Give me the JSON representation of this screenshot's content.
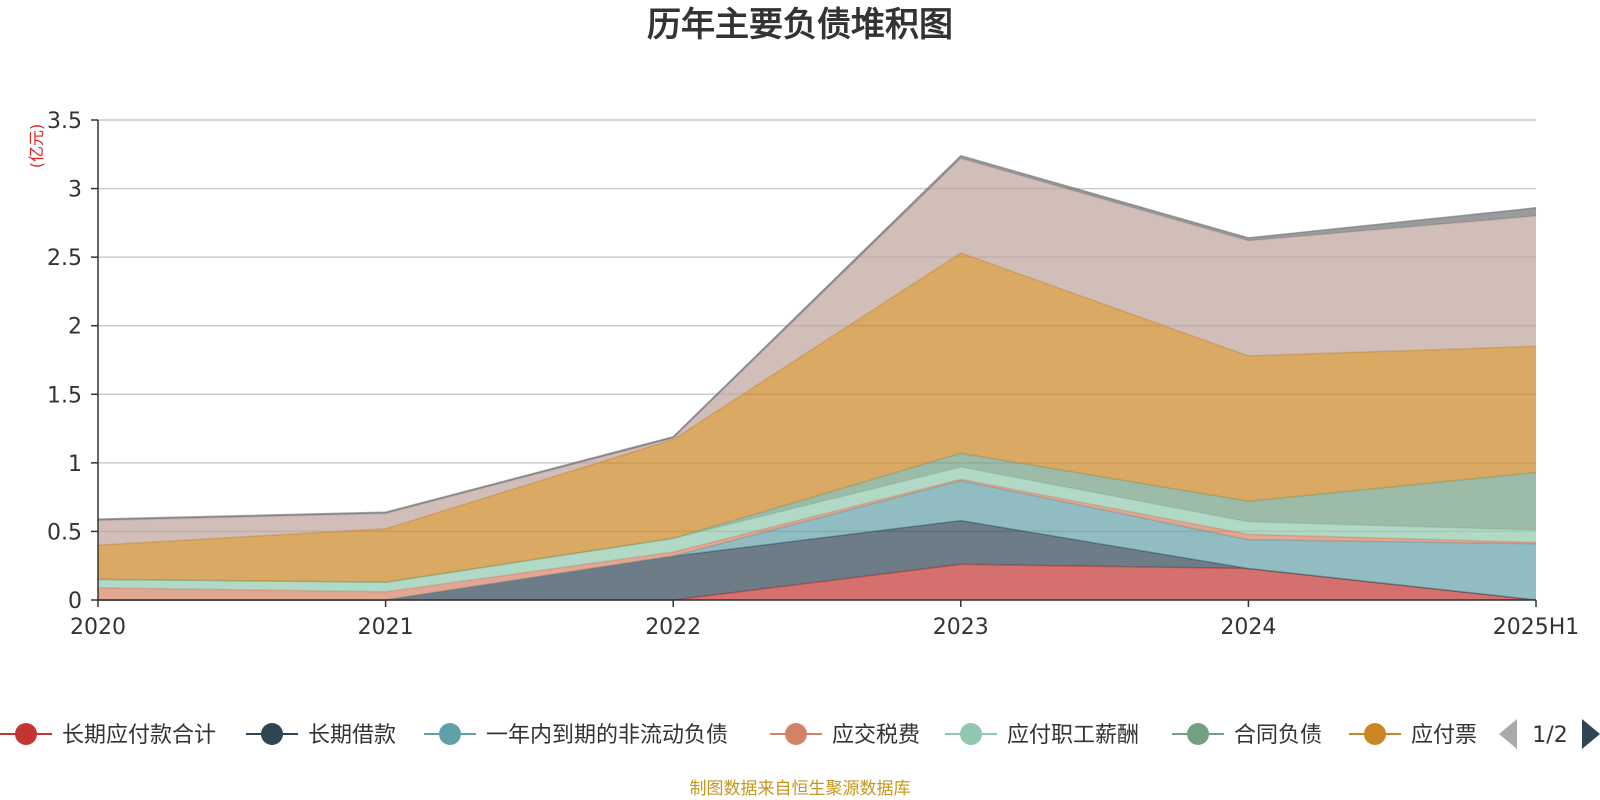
{
  "chart_data": {
    "type": "area",
    "stacked": true,
    "title": "历年主要负债堆积图",
    "ylabel": "(亿元)",
    "ylim": [
      0,
      3.5
    ],
    "yticks": [
      0,
      0.5,
      1,
      1.5,
      2,
      2.5,
      3,
      3.5
    ],
    "ytick_labels": [
      "0",
      "0.5",
      "1",
      "1.5",
      "2",
      "2.5",
      "3",
      "3.5"
    ],
    "categories": [
      "2020",
      "2021",
      "2022",
      "2023",
      "2024",
      "2025H1"
    ],
    "grid": true,
    "legend_position": "bottom",
    "legend_page": "1/2",
    "series": [
      {
        "name": "长期应付款合计",
        "color": "#c23531",
        "values": [
          0,
          0,
          0,
          0.26,
          0.23,
          0
        ]
      },
      {
        "name": "长期借款",
        "color": "#2f4554",
        "values": [
          0,
          0,
          0.32,
          0.32,
          0,
          0
        ]
      },
      {
        "name": "一年内到期的非流动负债",
        "color": "#61a0a8",
        "values": [
          0,
          0,
          0,
          0.29,
          0.21,
          0.41
        ]
      },
      {
        "name": "应交税费",
        "color": "#d48265",
        "values": [
          0.09,
          0.06,
          0.03,
          0.01,
          0.04,
          0.01
        ]
      },
      {
        "name": "应付职工薪酬",
        "color": "#91c7ae",
        "values": [
          0.06,
          0.07,
          0.1,
          0.09,
          0.09,
          0.09
        ]
      },
      {
        "name": "合同负债",
        "color": "#749f83",
        "values": [
          0,
          0,
          0,
          0.1,
          0.15,
          0.42
        ]
      },
      {
        "name": "应付票",
        "color": "#ca8622",
        "values": [
          0.25,
          0.39,
          0.72,
          1.46,
          1.06,
          0.92
        ]
      },
      {
        "name": "",
        "color": "#bda29a",
        "values": [
          0.18,
          0.11,
          0.01,
          0.69,
          0.84,
          0.95
        ],
        "legend": false
      },
      {
        "name": "",
        "color": "#6e7074",
        "values": [
          0.01,
          0.01,
          0.01,
          0.02,
          0.02,
          0.06
        ],
        "legend": false
      }
    ],
    "source": "制图数据来自恒生聚源数据库"
  }
}
